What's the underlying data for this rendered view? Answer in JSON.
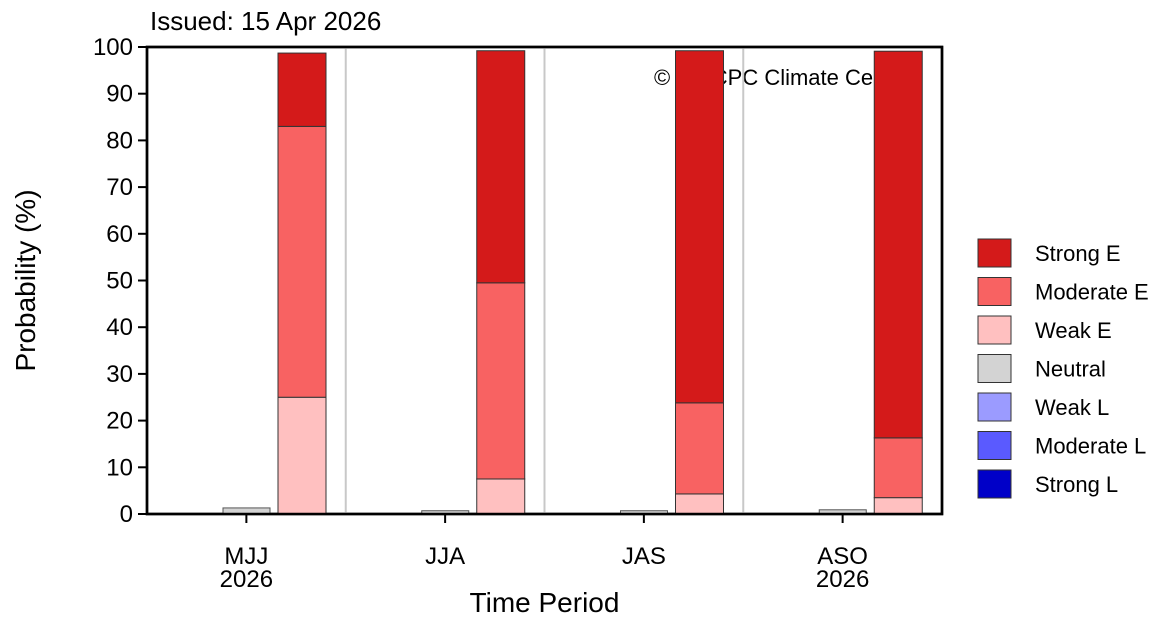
{
  "chart_data": {
    "type": "bar",
    "stacked": true,
    "title": "Issued: 15 Apr 2026",
    "xlabel": "Time Period",
    "ylabel": "Probability (%)",
    "ylim": [
      0,
      100
    ],
    "yticks": [
      0,
      10,
      20,
      30,
      40,
      50,
      60,
      70,
      80,
      90,
      100
    ],
    "copyright": "© IRI-CPC Climate Center",
    "categories": [
      {
        "label": "MJJ",
        "sublabel": "2026"
      },
      {
        "label": "JJA",
        "sublabel": ""
      },
      {
        "label": "JAS",
        "sublabel": ""
      },
      {
        "label": "ASO",
        "sublabel": "2026"
      }
    ],
    "la_nina_series": [
      {
        "name": "Weak L",
        "color": "#9b9bff",
        "values": [
          0,
          0,
          0,
          0
        ]
      },
      {
        "name": "Moderate L",
        "color": "#5a5aff",
        "values": [
          0,
          0,
          0,
          0
        ]
      },
      {
        "name": "Strong L",
        "color": "#0000c8",
        "values": [
          0,
          0,
          0,
          0
        ]
      }
    ],
    "neutral_series": {
      "name": "Neutral",
      "color": "#d3d3d3",
      "values": [
        1.3,
        0.7,
        0.7,
        0.9
      ]
    },
    "el_nino_series": [
      {
        "name": "Weak E",
        "color": "#ffc0c0",
        "values": [
          25,
          7.5,
          4.3,
          3.5
        ]
      },
      {
        "name": "Moderate E",
        "color": "#f86262",
        "values": [
          58,
          42,
          19.5,
          12.8
        ]
      },
      {
        "name": "Strong E",
        "color": "#d41a1a",
        "values": [
          15.7,
          49.7,
          75.4,
          82.8
        ]
      }
    ],
    "legend": {
      "placement": "right",
      "entries": [
        {
          "name": "Strong E",
          "color": "#d41a1a"
        },
        {
          "name": "Moderate E",
          "color": "#f86262"
        },
        {
          "name": "Weak E",
          "color": "#ffc0c0"
        },
        {
          "name": "Neutral",
          "color": "#d3d3d3"
        },
        {
          "name": "Weak L",
          "color": "#9b9bff"
        },
        {
          "name": "Moderate L",
          "color": "#5a5aff"
        },
        {
          "name": "Strong L",
          "color": "#0000c8"
        }
      ]
    },
    "grid": false
  }
}
